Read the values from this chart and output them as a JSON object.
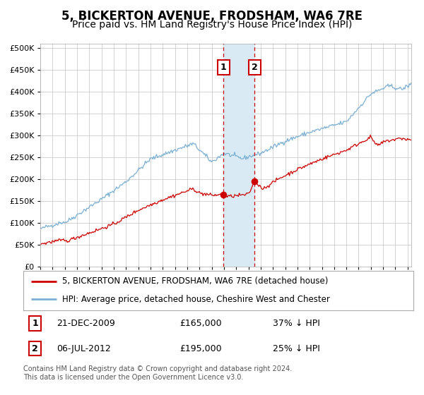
{
  "title": "5, BICKERTON AVENUE, FRODSHAM, WA6 7RE",
  "subtitle": "Price paid vs. HM Land Registry's House Price Index (HPI)",
  "legend_red": "5, BICKERTON AVENUE, FRODSHAM, WA6 7RE (detached house)",
  "legend_blue": "HPI: Average price, detached house, Cheshire West and Chester",
  "annotation1_date": "21-DEC-2009",
  "annotation1_price": "£165,000",
  "annotation1_pct": "37% ↓ HPI",
  "annotation1_year": 2009.97,
  "annotation1_value": 165000,
  "annotation2_date": "06-JUL-2012",
  "annotation2_price": "£195,000",
  "annotation2_pct": "25% ↓ HPI",
  "annotation2_year": 2012.51,
  "annotation2_value": 195000,
  "footer": "Contains HM Land Registry data © Crown copyright and database right 2024.\nThis data is licensed under the Open Government Licence v3.0.",
  "red_color": "#cc0000",
  "blue_color": "#7ab0d4",
  "shade_color": "#daeaf5",
  "vline_color": "#cc0000",
  "ylim_min": 0,
  "ylim_max": 510000,
  "xlim_min": 1995.0,
  "xlim_max": 2025.3,
  "background_color": "#ffffff",
  "grid_color": "#cccccc",
  "title_fontsize": 12,
  "subtitle_fontsize": 10,
  "tick_fontsize": 8
}
